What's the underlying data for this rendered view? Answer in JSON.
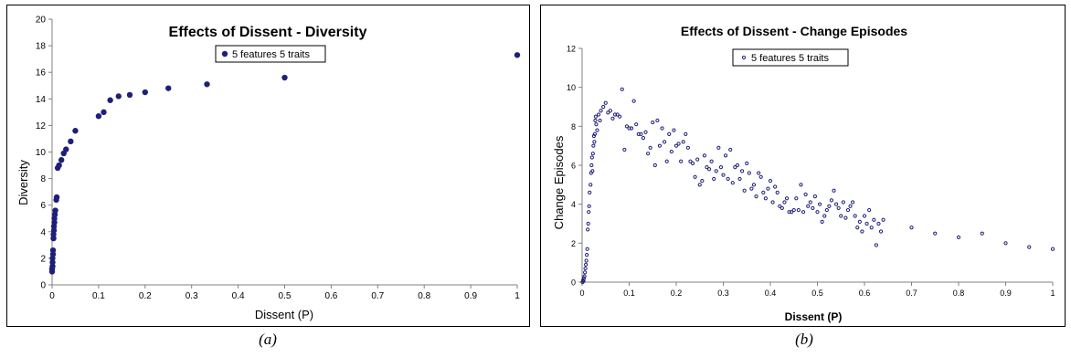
{
  "captions": {
    "a": "(a)",
    "b": "(b)"
  },
  "colors": {
    "marker": "#1f1f7a",
    "axis": "#808080"
  },
  "chart_data": [
    {
      "type": "scatter",
      "title": "Effects of Dissent - Diversity",
      "xlabel": "Dissent (P)",
      "ylabel": "Diversity",
      "xlim": [
        0,
        1
      ],
      "ylim": [
        0,
        20
      ],
      "x_ticks": [
        "0",
        "0.1",
        "0.2",
        "0.3",
        "0.4",
        "0.5",
        "0.6",
        "0.7",
        "0.8",
        "0.9",
        "1"
      ],
      "y_ticks": [
        "0",
        "2",
        "4",
        "6",
        "8",
        "10",
        "12",
        "14",
        "16",
        "18",
        "20"
      ],
      "grid": false,
      "legend_position": "top-center",
      "series": [
        {
          "name": "5 features 5 traits",
          "marker": "large-dot",
          "points": [
            [
              0,
              1.0
            ],
            [
              0,
              1.2
            ],
            [
              0.001,
              1.4
            ],
            [
              0.001,
              1.7
            ],
            [
              0.001,
              2.0
            ],
            [
              0.002,
              2.3
            ],
            [
              0.002,
              2.6
            ],
            [
              0.003,
              3.5
            ],
            [
              0.003,
              3.8
            ],
            [
              0.004,
              4.1
            ],
            [
              0.004,
              4.4
            ],
            [
              0.005,
              4.7
            ],
            [
              0.005,
              5.0
            ],
            [
              0.006,
              5.3
            ],
            [
              0.007,
              5.6
            ],
            [
              0.009,
              6.4
            ],
            [
              0.01,
              6.6
            ],
            [
              0.012,
              8.8
            ],
            [
              0.015,
              9.0
            ],
            [
              0.02,
              9.4
            ],
            [
              0.025,
              9.9
            ],
            [
              0.03,
              10.2
            ],
            [
              0.04,
              10.8
            ],
            [
              0.05,
              11.6
            ],
            [
              0.1,
              12.7
            ],
            [
              0.111,
              13.0
            ],
            [
              0.125,
              13.9
            ],
            [
              0.143,
              14.2
            ],
            [
              0.167,
              14.3
            ],
            [
              0.2,
              14.5
            ],
            [
              0.25,
              14.8
            ],
            [
              0.333,
              15.1
            ],
            [
              0.5,
              15.6
            ],
            [
              1.0,
              17.3
            ]
          ]
        }
      ]
    },
    {
      "type": "scatter",
      "title": "Effects of Dissent - Change Episodes",
      "xlabel": "Dissent (P)",
      "ylabel": "Change Episodes",
      "xlim": [
        0,
        1
      ],
      "ylim": [
        0,
        12
      ],
      "x_ticks": [
        "0",
        "0.1",
        "0.2",
        "0.3",
        "0.4",
        "0.5",
        "0.6",
        "0.7",
        "0.8",
        "0.9",
        "1"
      ],
      "y_ticks": [
        "0",
        "2",
        "4",
        "6",
        "8",
        "10",
        "12"
      ],
      "grid": false,
      "legend_position": "top-center",
      "series": [
        {
          "name": "5 features 5 traits",
          "marker": "small-dot",
          "points": [
            [
              0.001,
              0.0
            ],
            [
              0.002,
              0.1
            ],
            [
              0.003,
              0.05
            ],
            [
              0.004,
              0.2
            ],
            [
              0.005,
              0.3
            ],
            [
              0.006,
              0.5
            ],
            [
              0.007,
              0.7
            ],
            [
              0.008,
              0.9
            ],
            [
              0.009,
              1.1
            ],
            [
              0.01,
              1.4
            ],
            [
              0.011,
              1.7
            ],
            [
              0.012,
              2.7
            ],
            [
              0.013,
              3.0
            ],
            [
              0.014,
              3.6
            ],
            [
              0.015,
              3.9
            ],
            [
              0.016,
              4.6
            ],
            [
              0.018,
              5.0
            ],
            [
              0.019,
              5.6
            ],
            [
              0.02,
              6.0
            ],
            [
              0.021,
              6.4
            ],
            [
              0.022,
              5.7
            ],
            [
              0.023,
              6.6
            ],
            [
              0.024,
              7.0
            ],
            [
              0.025,
              7.5
            ],
            [
              0.026,
              7.2
            ],
            [
              0.027,
              7.6
            ],
            [
              0.028,
              8.3
            ],
            [
              0.029,
              8.5
            ],
            [
              0.03,
              8.1
            ],
            [
              0.032,
              7.8
            ],
            [
              0.035,
              8.6
            ],
            [
              0.038,
              8.3
            ],
            [
              0.04,
              8.8
            ],
            [
              0.045,
              9.0
            ],
            [
              0.05,
              9.2
            ],
            [
              0.055,
              8.7
            ],
            [
              0.06,
              8.8
            ],
            [
              0.065,
              8.4
            ],
            [
              0.07,
              8.6
            ],
            [
              0.075,
              8.6
            ],
            [
              0.08,
              8.5
            ],
            [
              0.085,
              9.9
            ],
            [
              0.09,
              6.8
            ],
            [
              0.095,
              8.0
            ],
            [
              0.1,
              7.9
            ],
            [
              0.105,
              7.9
            ],
            [
              0.11,
              9.3
            ],
            [
              0.115,
              8.1
            ],
            [
              0.12,
              7.6
            ],
            [
              0.125,
              7.6
            ],
            [
              0.13,
              7.4
            ],
            [
              0.135,
              7.7
            ],
            [
              0.14,
              6.6
            ],
            [
              0.145,
              6.9
            ],
            [
              0.15,
              8.2
            ],
            [
              0.155,
              6.0
            ],
            [
              0.16,
              8.3
            ],
            [
              0.165,
              7.0
            ],
            [
              0.17,
              7.9
            ],
            [
              0.175,
              7.2
            ],
            [
              0.18,
              6.2
            ],
            [
              0.185,
              7.6
            ],
            [
              0.19,
              6.7
            ],
            [
              0.195,
              7.8
            ],
            [
              0.2,
              7.0
            ],
            [
              0.205,
              7.1
            ],
            [
              0.21,
              6.2
            ],
            [
              0.215,
              7.2
            ],
            [
              0.22,
              7.6
            ],
            [
              0.225,
              6.9
            ],
            [
              0.23,
              6.2
            ],
            [
              0.235,
              6.1
            ],
            [
              0.24,
              5.4
            ],
            [
              0.245,
              6.3
            ],
            [
              0.25,
              5.0
            ],
            [
              0.255,
              5.2
            ],
            [
              0.26,
              6.5
            ],
            [
              0.265,
              5.9
            ],
            [
              0.27,
              5.8
            ],
            [
              0.275,
              6.2
            ],
            [
              0.28,
              5.3
            ],
            [
              0.285,
              5.7
            ],
            [
              0.29,
              6.9
            ],
            [
              0.295,
              5.9
            ],
            [
              0.3,
              5.5
            ],
            [
              0.305,
              6.5
            ],
            [
              0.31,
              5.3
            ],
            [
              0.315,
              6.8
            ],
            [
              0.32,
              5.1
            ],
            [
              0.325,
              5.9
            ],
            [
              0.33,
              6.0
            ],
            [
              0.335,
              5.3
            ],
            [
              0.34,
              5.7
            ],
            [
              0.345,
              4.7
            ],
            [
              0.35,
              6.1
            ],
            [
              0.355,
              5.6
            ],
            [
              0.36,
              4.8
            ],
            [
              0.365,
              5.0
            ],
            [
              0.37,
              4.4
            ],
            [
              0.375,
              5.6
            ],
            [
              0.38,
              5.4
            ],
            [
              0.385,
              4.6
            ],
            [
              0.39,
              4.3
            ],
            [
              0.395,
              4.8
            ],
            [
              0.4,
              5.2
            ],
            [
              0.405,
              4.1
            ],
            [
              0.41,
              4.9
            ],
            [
              0.415,
              4.6
            ],
            [
              0.42,
              3.9
            ],
            [
              0.425,
              3.8
            ],
            [
              0.43,
              4.1
            ],
            [
              0.435,
              4.3
            ],
            [
              0.44,
              3.6
            ],
            [
              0.445,
              3.6
            ],
            [
              0.45,
              3.7
            ],
            [
              0.455,
              4.3
            ],
            [
              0.46,
              3.7
            ],
            [
              0.465,
              5.0
            ],
            [
              0.47,
              3.6
            ],
            [
              0.475,
              4.5
            ],
            [
              0.48,
              3.9
            ],
            [
              0.485,
              4.1
            ],
            [
              0.49,
              3.8
            ],
            [
              0.495,
              4.4
            ],
            [
              0.5,
              3.6
            ],
            [
              0.505,
              4.0
            ],
            [
              0.51,
              3.1
            ],
            [
              0.515,
              3.4
            ],
            [
              0.52,
              3.7
            ],
            [
              0.525,
              3.9
            ],
            [
              0.53,
              4.2
            ],
            [
              0.535,
              4.7
            ],
            [
              0.54,
              4.0
            ],
            [
              0.545,
              3.8
            ],
            [
              0.55,
              3.4
            ],
            [
              0.555,
              4.1
            ],
            [
              0.56,
              3.3
            ],
            [
              0.565,
              3.7
            ],
            [
              0.57,
              3.9
            ],
            [
              0.575,
              4.1
            ],
            [
              0.58,
              3.4
            ],
            [
              0.585,
              2.8
            ],
            [
              0.59,
              3.1
            ],
            [
              0.595,
              2.6
            ],
            [
              0.6,
              3.4
            ],
            [
              0.605,
              3.0
            ],
            [
              0.61,
              3.7
            ],
            [
              0.615,
              2.8
            ],
            [
              0.62,
              3.2
            ],
            [
              0.625,
              1.9
            ],
            [
              0.63,
              3.0
            ],
            [
              0.635,
              2.6
            ],
            [
              0.64,
              3.2
            ],
            [
              0.7,
              2.8
            ],
            [
              0.75,
              2.5
            ],
            [
              0.8,
              2.3
            ],
            [
              0.85,
              2.5
            ],
            [
              0.9,
              2.0
            ],
            [
              0.95,
              1.8
            ],
            [
              1.0,
              1.7
            ]
          ]
        }
      ]
    }
  ]
}
